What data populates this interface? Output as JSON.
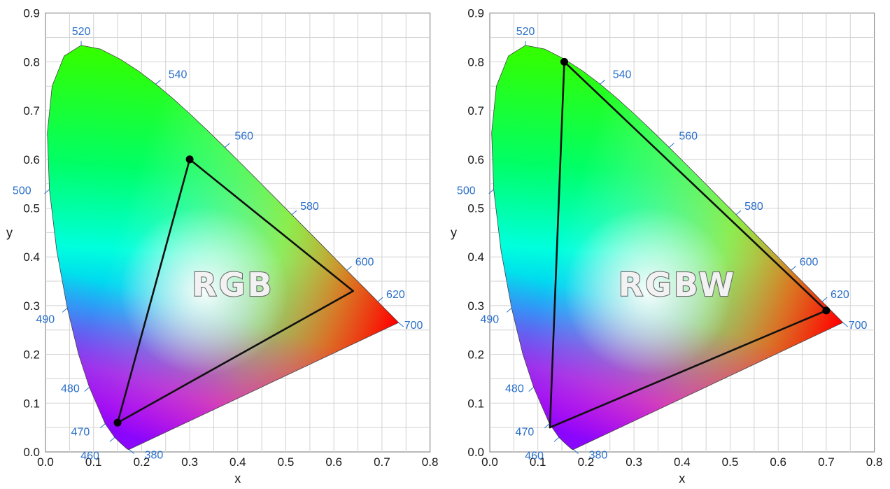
{
  "chart_data": [
    {
      "type": "diagram",
      "title": "",
      "label": "RGB",
      "xlabel": "x",
      "ylabel": "y",
      "xlim": [
        0.0,
        0.8
      ],
      "ylim": [
        0.0,
        0.9
      ],
      "xticks": [
        "0.0",
        "0.1",
        "0.2",
        "0.3",
        "0.4",
        "0.5",
        "0.6",
        "0.7",
        "0.8"
      ],
      "yticks": [
        "0.0",
        "0.1",
        "0.2",
        "0.3",
        "0.4",
        "0.5",
        "0.6",
        "0.7",
        "0.8",
        "0.9"
      ],
      "grid": true,
      "wavelength_labels": [
        "380",
        "460",
        "470",
        "480",
        "490",
        "500",
        "520",
        "540",
        "560",
        "580",
        "600",
        "620",
        "700"
      ],
      "gamut_triangle": [
        [
          0.3,
          0.6
        ],
        [
          0.64,
          0.33
        ],
        [
          0.15,
          0.06
        ]
      ],
      "primary_markers": [
        [
          0.3,
          0.6
        ],
        [
          0.15,
          0.06
        ]
      ]
    },
    {
      "type": "diagram",
      "title": "",
      "label": "RGBW",
      "xlabel": "x",
      "ylabel": "y",
      "xlim": [
        0.0,
        0.8
      ],
      "ylim": [
        0.0,
        0.9
      ],
      "xticks": [
        "0.0",
        "0.1",
        "0.2",
        "0.3",
        "0.4",
        "0.5",
        "0.6",
        "0.7",
        "0.8"
      ],
      "yticks": [
        "0.0",
        "0.1",
        "0.2",
        "0.3",
        "0.4",
        "0.5",
        "0.6",
        "0.7",
        "0.8",
        "0.9"
      ],
      "grid": true,
      "wavelength_labels": [
        "380",
        "460",
        "470",
        "480",
        "490",
        "500",
        "520",
        "540",
        "560",
        "580",
        "600",
        "620",
        "700"
      ],
      "gamut_triangle": [
        [
          0.155,
          0.8
        ],
        [
          0.7,
          0.29
        ],
        [
          0.125,
          0.05
        ]
      ],
      "primary_markers": [
        [
          0.155,
          0.8
        ],
        [
          0.7,
          0.29
        ]
      ]
    }
  ]
}
